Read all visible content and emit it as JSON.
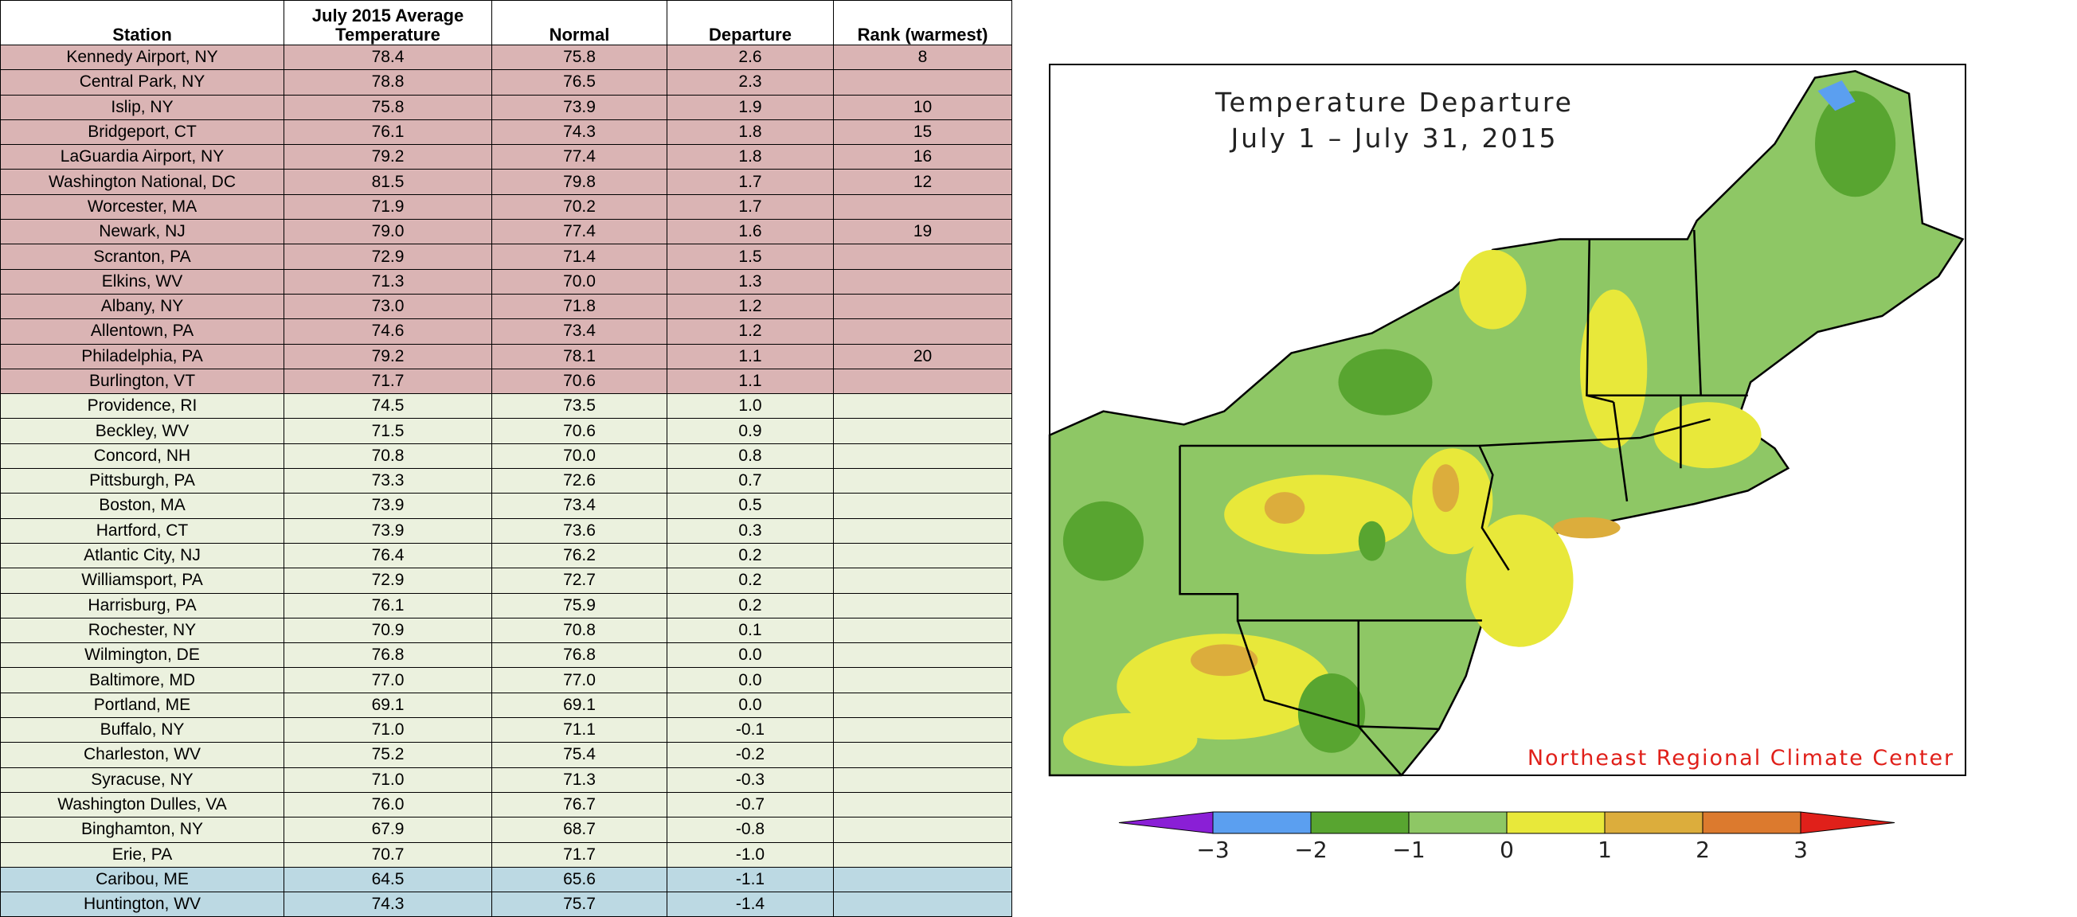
{
  "table": {
    "headers": [
      "Station",
      "July 2015 Average Temperature",
      "Normal",
      "Departure",
      "Rank (warmest)"
    ],
    "rows": [
      [
        "Kennedy Airport, NY",
        "78.4",
        "75.8",
        "2.6",
        "8"
      ],
      [
        "Central Park, NY",
        "78.8",
        "76.5",
        "2.3",
        null
      ],
      [
        "Islip, NY",
        "75.8",
        "73.9",
        "1.9",
        "10"
      ],
      [
        "Bridgeport, CT",
        "76.1",
        "74.3",
        "1.8",
        "15"
      ],
      [
        "LaGuardia Airport, NY",
        "79.2",
        "77.4",
        "1.8",
        "16"
      ],
      [
        "Washington National, DC",
        "81.5",
        "79.8",
        "1.7",
        "12"
      ],
      [
        "Worcester, MA",
        "71.9",
        "70.2",
        "1.7",
        null
      ],
      [
        "Newark, NJ",
        "79.0",
        "77.4",
        "1.6",
        "19"
      ],
      [
        "Scranton, PA",
        "72.9",
        "71.4",
        "1.5",
        null
      ],
      [
        "Elkins, WV",
        "71.3",
        "70.0",
        "1.3",
        null
      ],
      [
        "Albany, NY",
        "73.0",
        "71.8",
        "1.2",
        null
      ],
      [
        "Allentown, PA",
        "74.6",
        "73.4",
        "1.2",
        null
      ],
      [
        "Philadelphia, PA",
        "79.2",
        "78.1",
        "1.1",
        "20"
      ],
      [
        "Burlington, VT",
        "71.7",
        "70.6",
        "1.1",
        null
      ],
      [
        "Providence, RI",
        "74.5",
        "73.5",
        "1.0",
        null
      ],
      [
        "Beckley, WV",
        "71.5",
        "70.6",
        "0.9",
        null
      ],
      [
        "Concord, NH",
        "70.8",
        "70.0",
        "0.8",
        null
      ],
      [
        "Pittsburgh, PA",
        "73.3",
        "72.6",
        "0.7",
        null
      ],
      [
        "Boston, MA",
        "73.9",
        "73.4",
        "0.5",
        null
      ],
      [
        "Hartford, CT",
        "73.9",
        "73.6",
        "0.3",
        null
      ],
      [
        "Atlantic City, NJ",
        "76.4",
        "76.2",
        "0.2",
        null
      ],
      [
        "Williamsport, PA",
        "72.9",
        "72.7",
        "0.2",
        null
      ],
      [
        "Harrisburg, PA",
        "76.1",
        "75.9",
        "0.2",
        null
      ],
      [
        "Rochester, NY",
        "70.9",
        "70.8",
        "0.1",
        null
      ],
      [
        "Wilmington, DE",
        "76.8",
        "76.8",
        "0.0",
        null
      ],
      [
        "Baltimore, MD",
        "77.0",
        "77.0",
        "0.0",
        null
      ],
      [
        "Portland, ME",
        "69.1",
        "69.1",
        "0.0",
        null
      ],
      [
        "Buffalo, NY",
        "71.0",
        "71.1",
        "-0.1",
        null
      ],
      [
        "Charleston, WV",
        "75.2",
        "75.4",
        "-0.2",
        null
      ],
      [
        "Syracuse, NY",
        "71.0",
        "71.3",
        "-0.3",
        null
      ],
      [
        "Washington Dulles, VA",
        "76.0",
        "76.7",
        "-0.7",
        null
      ],
      [
        "Binghamton, NY",
        "67.9",
        "68.7",
        "-0.8",
        null
      ],
      [
        "Erie, PA",
        "70.7",
        "71.7",
        "-1.0",
        null
      ],
      [
        "Caribou, ME",
        "64.5",
        "65.6",
        "-1.1",
        null
      ],
      [
        "Huntington, WV",
        "74.3",
        "75.7",
        "-1.4",
        null
      ]
    ]
  },
  "map": {
    "title": "Temperature Departure",
    "subtitle": "July 1 – July 31, 2015",
    "credit": "Northeast Regional Climate Center",
    "legend": {
      "labels": [
        "−3",
        "−2",
        "−1",
        "0",
        "1",
        "2",
        "3"
      ],
      "colors": [
        "#8a1fd6",
        "#5b9ff0",
        "#58a530",
        "#8ec765",
        "#e8e83a",
        "#dcad3c",
        "#dc7a2e",
        "#e0201a"
      ]
    }
  }
}
